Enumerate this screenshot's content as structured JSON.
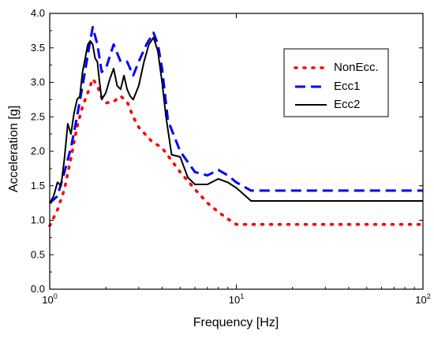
{
  "chart_data": {
    "type": "line",
    "xlabel": "Frequency [Hz]",
    "ylabel": "Acceleration [g]",
    "xscale": "log",
    "xlim": [
      1,
      100
    ],
    "ylim": [
      0.0,
      4.0
    ],
    "x_ticks": [
      {
        "value": 1,
        "base": "10",
        "exp": "0"
      },
      {
        "value": 10,
        "base": "10",
        "exp": "1"
      },
      {
        "value": 100,
        "base": "10",
        "exp": "2"
      }
    ],
    "y_ticks": [
      "0.0",
      "0.5",
      "1.0",
      "1.5",
      "2.0",
      "2.5",
      "3.0",
      "3.5",
      "4.0"
    ],
    "grid": false,
    "legend": {
      "placement": "top-right",
      "entries": [
        "NonEcc.",
        "Ecc1",
        "Ecc2"
      ]
    },
    "series": [
      {
        "name": "NonEcc.",
        "color": "#ff0000",
        "style": "dotted",
        "x": [
          1.0,
          1.1,
          1.2,
          1.3,
          1.4,
          1.5,
          1.6,
          1.7,
          1.8,
          1.9,
          2.0,
          2.2,
          2.4,
          2.6,
          2.8,
          3.0,
          3.5,
          4.0,
          5.0,
          6.0,
          7.0,
          8.0,
          9.0,
          10.0,
          100.0
        ],
        "y": [
          0.92,
          1.15,
          1.45,
          1.9,
          2.35,
          2.65,
          2.85,
          3.05,
          2.95,
          2.78,
          2.7,
          2.72,
          2.8,
          2.72,
          2.5,
          2.35,
          2.15,
          2.05,
          1.7,
          1.45,
          1.25,
          1.12,
          1.02,
          0.94,
          0.94
        ]
      },
      {
        "name": "Ecc1",
        "color": "#0000ff",
        "style": "dashed",
        "x": [
          1.0,
          1.1,
          1.2,
          1.3,
          1.4,
          1.5,
          1.6,
          1.7,
          1.8,
          1.9,
          2.0,
          2.2,
          2.4,
          2.6,
          2.8,
          3.0,
          3.3,
          3.6,
          3.8,
          4.0,
          4.3,
          5.0,
          6.0,
          7.0,
          8.0,
          9.0,
          10.0,
          12.0,
          100.0
        ],
        "y": [
          1.25,
          1.35,
          1.7,
          2.05,
          2.5,
          2.95,
          3.4,
          3.8,
          3.55,
          3.15,
          3.2,
          3.55,
          3.3,
          3.3,
          3.1,
          3.3,
          3.55,
          3.72,
          3.55,
          3.2,
          2.45,
          2.0,
          1.7,
          1.65,
          1.73,
          1.65,
          1.55,
          1.43,
          1.43
        ]
      },
      {
        "name": "Ecc2",
        "color": "#000000",
        "style": "solid",
        "x": [
          1.0,
          1.05,
          1.1,
          1.15,
          1.2,
          1.25,
          1.3,
          1.35,
          1.4,
          1.45,
          1.5,
          1.55,
          1.6,
          1.65,
          1.7,
          1.75,
          1.8,
          1.85,
          1.9,
          2.0,
          2.1,
          2.2,
          2.3,
          2.4,
          2.5,
          2.6,
          2.7,
          2.8,
          3.0,
          3.2,
          3.4,
          3.6,
          3.8,
          4.0,
          4.2,
          4.5,
          5.0,
          5.5,
          6.0,
          7.0,
          8.0,
          9.0,
          10.0,
          12.0,
          100.0
        ],
        "y": [
          1.25,
          1.35,
          1.55,
          1.5,
          1.9,
          2.4,
          2.25,
          2.55,
          2.75,
          2.8,
          3.15,
          3.35,
          3.55,
          3.6,
          3.55,
          3.35,
          3.3,
          3.0,
          2.75,
          2.85,
          3.05,
          3.2,
          2.95,
          2.9,
          3.1,
          2.9,
          2.8,
          2.75,
          2.95,
          3.3,
          3.55,
          3.65,
          3.45,
          3.0,
          2.5,
          1.95,
          1.92,
          1.62,
          1.52,
          1.52,
          1.6,
          1.55,
          1.47,
          1.28,
          1.28
        ]
      }
    ]
  }
}
